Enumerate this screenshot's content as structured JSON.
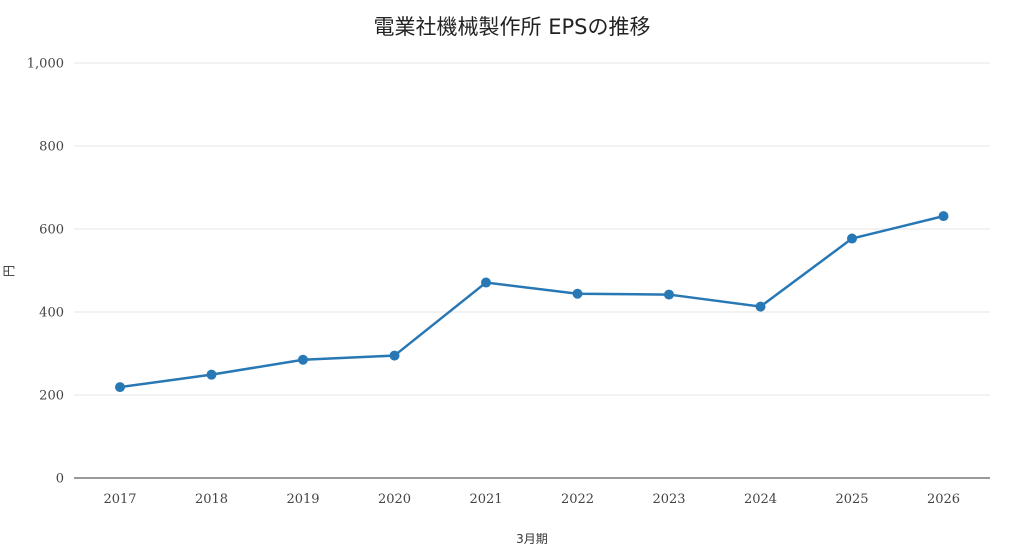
{
  "chart_data": {
    "type": "line",
    "title": "電業社機械製作所 EPSの推移",
    "xlabel": "3月期",
    "ylabel": "円",
    "categories": [
      "2017",
      "2018",
      "2019",
      "2020",
      "2021",
      "2022",
      "2023",
      "2024",
      "2025",
      "2026"
    ],
    "series": [
      {
        "values": [
          219,
          249,
          285,
          295,
          471,
          444,
          442,
          413,
          577,
          631
        ]
      }
    ],
    "ylim": [
      0,
      1000
    ],
    "yticks": [
      0,
      200,
      400,
      600,
      800,
      1000
    ],
    "ytick_labels": [
      "0",
      "200",
      "400",
      "600",
      "800",
      "1,000"
    ],
    "grid": true,
    "legend": "none",
    "colors": {
      "line": "#2878b5",
      "grid": "#e6e6e6",
      "baseline": "#333333"
    }
  }
}
